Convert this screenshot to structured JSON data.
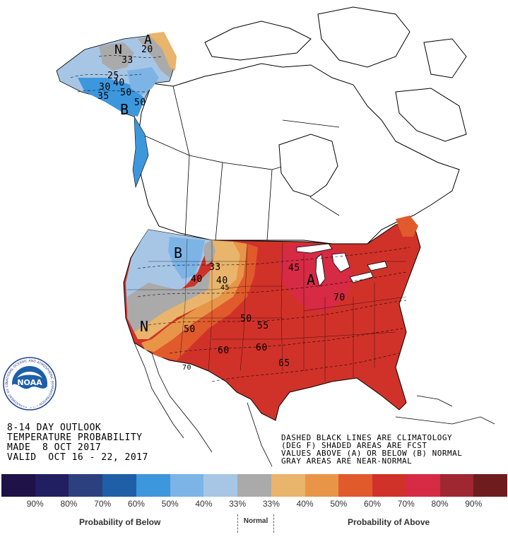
{
  "title_block": {
    "line1": "8-14 DAY OUTLOOK",
    "line2": "TEMPERATURE PROBABILITY",
    "line3": "MADE  8 OCT 2017",
    "line4": "VALID  OCT 16 - 22, 2017"
  },
  "notes": {
    "line1": "DASHED BLACK LINES ARE CLIMATOLOGY",
    "line2": "(DEG F) SHADED AREAS ARE FCST",
    "line3": "VALUES ABOVE (A) OR BELOW (B) NORMAL",
    "line4": "GRAY AREAS ARE NEAR-NORMAL"
  },
  "logo": {
    "name": "NOAA",
    "ring_text": "NATIONAL OCEANIC AND ATMOSPHERIC ADMINISTRATION • U.S. DEPARTMENT OF COMMERCE •"
  },
  "map_labels": {
    "alaska_n": "N",
    "alaska_a": "A",
    "alaska_b": "B",
    "west_b": "B",
    "west_n": "N",
    "east_a": "A",
    "ak_33": "33",
    "ak_40": "40",
    "ak_50": "50",
    "ak_50b": "50",
    "ak_25": "25",
    "ak_30": "30",
    "ak_35": "35",
    "ak_20": "20",
    "us_33": "33",
    "us_40a": "40",
    "us_40b": "40",
    "us_45": "45",
    "us_50a": "50",
    "us_50b": "50",
    "us_55": "55",
    "us_60a": "60",
    "us_60b": "60",
    "us_65": "65",
    "us_70a": "70",
    "us_70b": "70",
    "us_45b": "45"
  },
  "legend": {
    "colors": [
      "#1e1248",
      "#221e62",
      "#2c3f7f",
      "#1f5fa8",
      "#3d97dd",
      "#7cb4e6",
      "#a7c6e6",
      "#aaaaaa",
      "#e9b46b",
      "#e99547",
      "#e05a2c",
      "#d03229",
      "#d62a45",
      "#9e2731",
      "#6e1c1e"
    ],
    "pcts": [
      "90%",
      "80%",
      "70%",
      "60%",
      "50%",
      "40%",
      "33%",
      "33%",
      "40%",
      "50%",
      "60%",
      "70%",
      "80%",
      "90%"
    ],
    "below_label": "Probability of Below",
    "normal_label": "Normal",
    "above_label": "Probability of Above"
  }
}
